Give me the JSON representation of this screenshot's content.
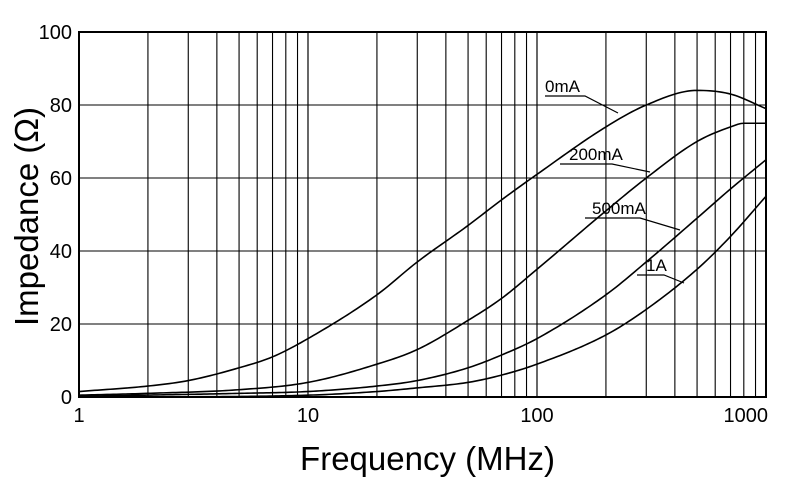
{
  "chart_data": {
    "type": "line",
    "xlabel": "Frequency (MHz)",
    "ylabel": "Impedance (Ω)",
    "x_scale": "log",
    "xlim": [
      1,
      1000
    ],
    "ylim": [
      0,
      100
    ],
    "grid": true,
    "x_ticks": [
      {
        "value": 1,
        "label": "1"
      },
      {
        "value": 10,
        "label": "10"
      },
      {
        "value": 100,
        "label": "100"
      },
      {
        "value": 1000,
        "label": "1000"
      }
    ],
    "y_ticks": [
      {
        "value": 0,
        "label": "0"
      },
      {
        "value": 20,
        "label": "20"
      },
      {
        "value": 40,
        "label": "40"
      },
      {
        "value": 60,
        "label": "60"
      },
      {
        "value": 80,
        "label": "80"
      },
      {
        "value": 100,
        "label": "100"
      }
    ],
    "series": [
      {
        "name": "0mA",
        "x": [
          1,
          2,
          3,
          5,
          7,
          10,
          20,
          30,
          50,
          70,
          100,
          200,
          300,
          500,
          700,
          1000
        ],
        "y": [
          1.5,
          3,
          4.5,
          8,
          11,
          16,
          28,
          37,
          47,
          54,
          61,
          74,
          80,
          84,
          83,
          79
        ]
      },
      {
        "name": "200mA",
        "x": [
          1,
          2,
          5,
          10,
          20,
          30,
          50,
          70,
          100,
          200,
          300,
          500,
          700,
          800,
          1000
        ],
        "y": [
          0.5,
          1,
          2,
          4,
          9,
          13,
          21,
          27,
          35,
          51,
          60,
          70,
          74,
          75,
          75
        ]
      },
      {
        "name": "500mA",
        "x": [
          1,
          5,
          10,
          20,
          30,
          50,
          70,
          100,
          200,
          300,
          500,
          700,
          1000
        ],
        "y": [
          0.2,
          1,
          1.5,
          3,
          4.5,
          8,
          11.5,
          16,
          28,
          37,
          49,
          57,
          65
        ]
      },
      {
        "name": "1A",
        "x": [
          1,
          10,
          20,
          30,
          50,
          70,
          100,
          200,
          300,
          500,
          700,
          1000
        ],
        "y": [
          0,
          0.5,
          1.5,
          2.5,
          4,
          6,
          9,
          17,
          24,
          35,
          44,
          55
        ]
      }
    ],
    "annotations": [
      {
        "text": "0mA",
        "series": "0mA"
      },
      {
        "text": "200mA",
        "series": "200mA"
      },
      {
        "text": "500mA",
        "series": "500mA"
      },
      {
        "text": "1A",
        "series": "1A"
      }
    ]
  }
}
